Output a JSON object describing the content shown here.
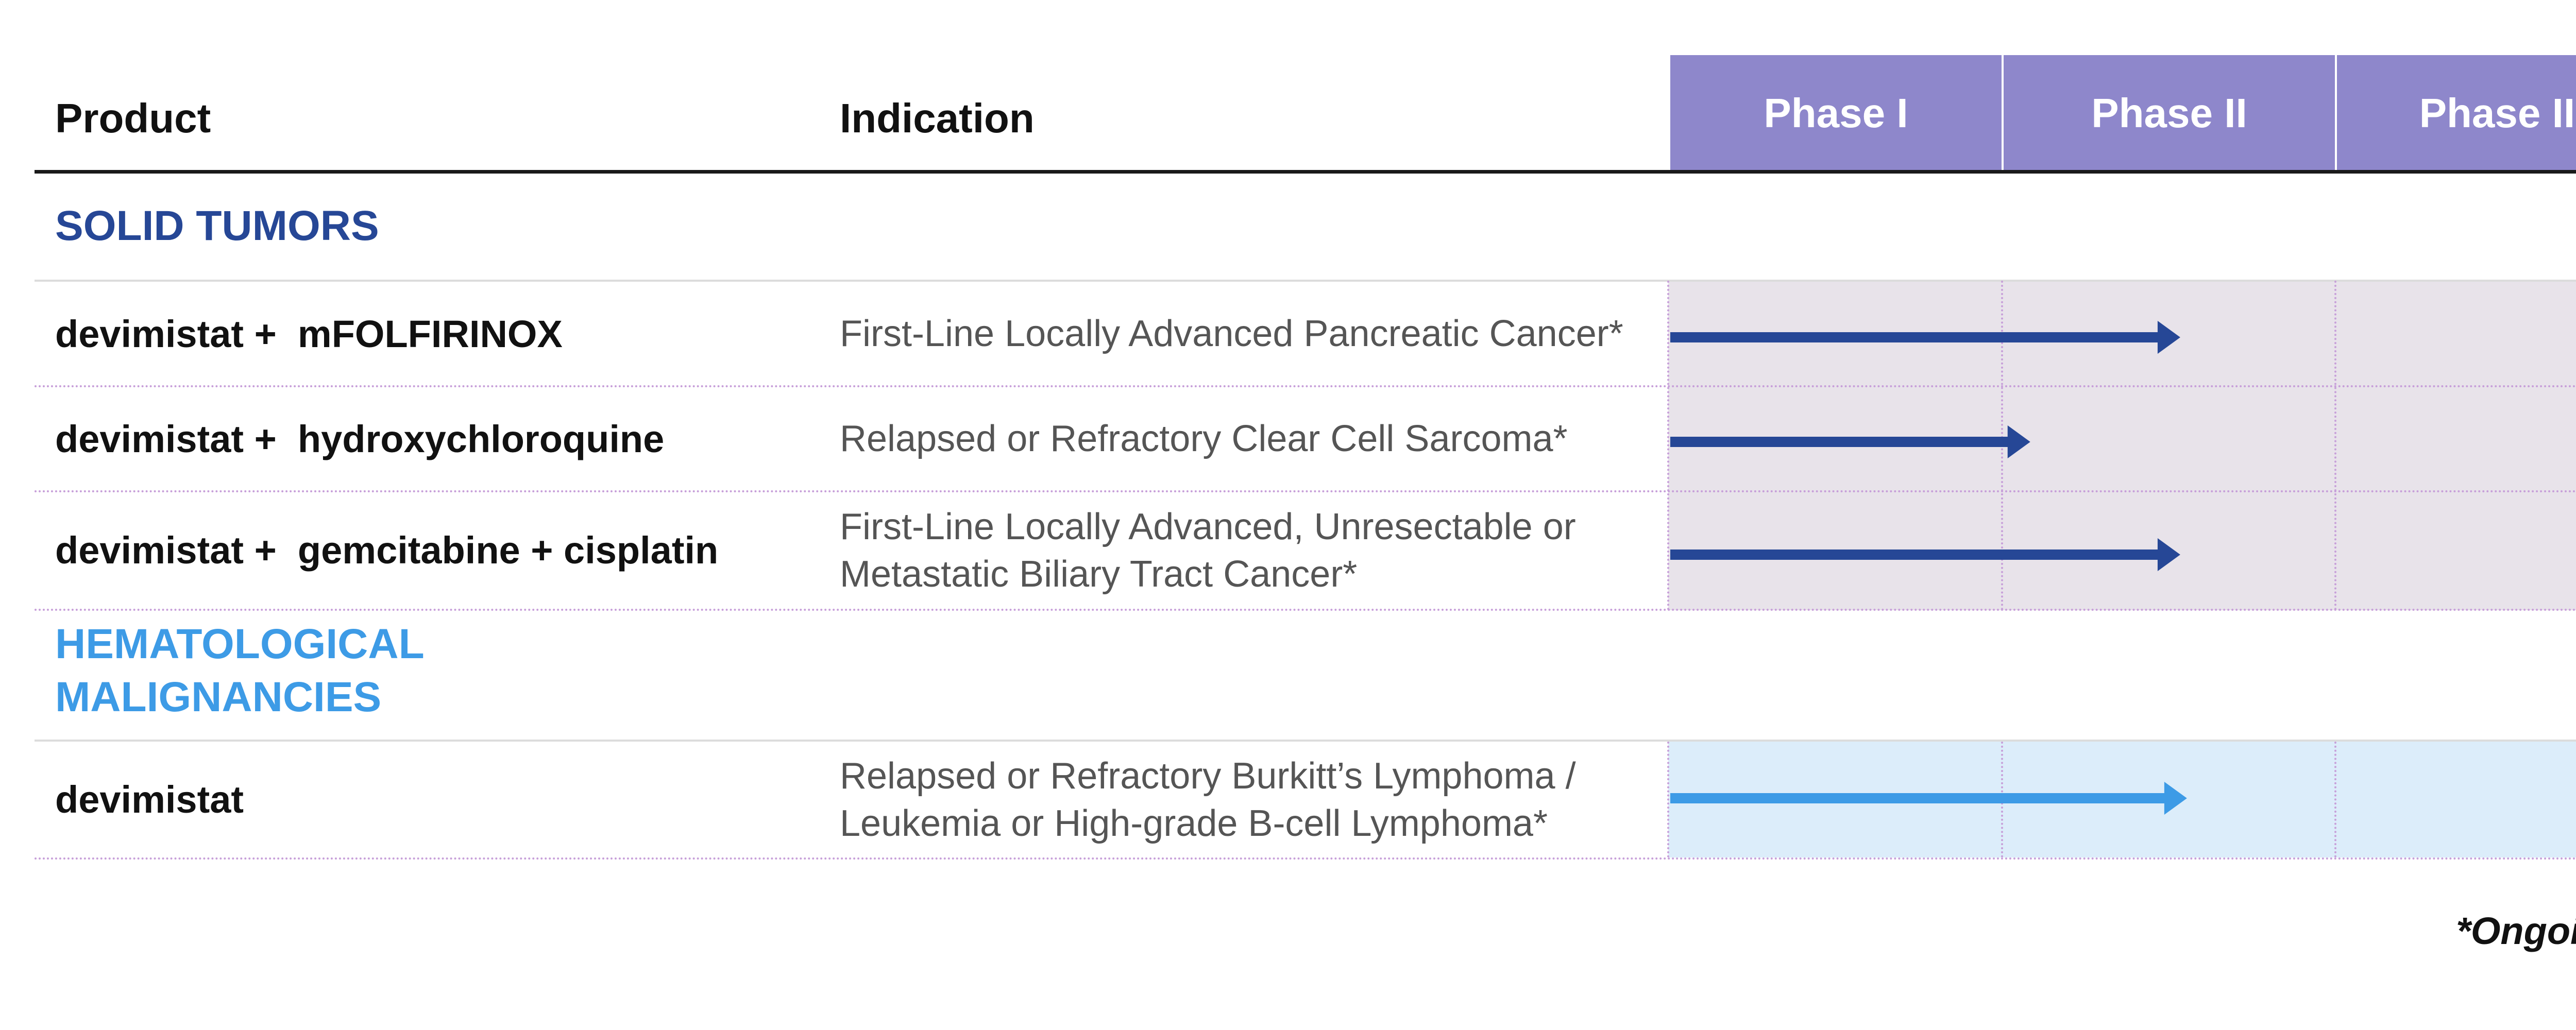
{
  "header": {
    "product_label": "Product",
    "indication_label": "Indication",
    "phases": [
      "Phase I",
      "Phase II",
      "Phase III"
    ]
  },
  "colors": {
    "phase_header": "#8e87cb",
    "solid_section": "#264796",
    "solid_band": "#e8e3ea",
    "solid_arrow": "#264796",
    "heme_section": "#3d9be6",
    "heme_band": "#dcedfa",
    "heme_arrow": "#3d9be6"
  },
  "sections": [
    {
      "title": "SOLID TUMORS",
      "rows": [
        {
          "product": "devimistat +  mFOLFIRINOX",
          "indication": "First-Line Locally Advanced Pancreatic Cancer*",
          "progress_phases": 1.53
        },
        {
          "product": "devimistat +  hydroxychloroquine",
          "indication": "Relapsed or Refractory Clear Cell Sarcoma*",
          "progress_phases": 1.08
        },
        {
          "product": "devimistat +  gemcitabine + cisplatin",
          "indication": "First-Line Locally Advanced, Unresectable or Metastatic Biliary Tract Cancer*",
          "progress_phases": 1.53
        }
      ]
    },
    {
      "title": "HEMATOLOGICAL MALIGNANCIES",
      "rows": [
        {
          "product": "devimistat",
          "indication": "Relapsed or Refractory Burkitt’s Lymphoma / Leukemia or High-grade B-cell Lymphoma*",
          "progress_phases": 1.55
        }
      ]
    }
  ],
  "footnote": "*Ongoing"
}
